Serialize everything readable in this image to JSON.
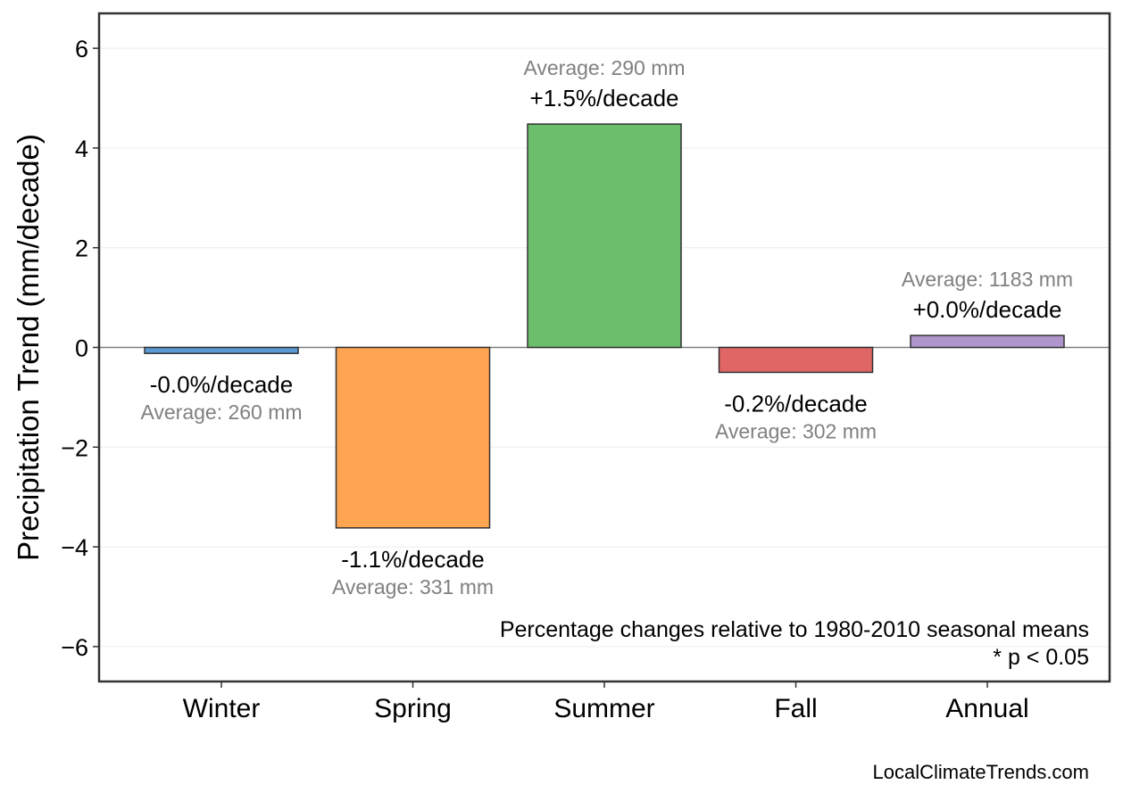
{
  "chart_data": {
    "type": "bar",
    "title": "",
    "xlabel": "",
    "ylabel": "Precipitation Trend (mm/decade)",
    "ylim": [
      -6.7,
      6.7
    ],
    "yticks": [
      6,
      4,
      2,
      0,
      -2,
      -4,
      -6
    ],
    "ytick_labels": [
      "6",
      "4",
      "2",
      "0",
      "−2",
      "−4",
      "−6"
    ],
    "grid": true,
    "categories": [
      "Winter",
      "Spring",
      "Summer",
      "Fall",
      "Annual"
    ],
    "values": [
      -0.12,
      -3.62,
      4.48,
      -0.5,
      0.24
    ],
    "colors": [
      "#5b9bd5",
      "#ffa552",
      "#6bbe6b",
      "#e06666",
      "#b094cc"
    ],
    "percent_labels": [
      "-0.0%/decade",
      "-1.1%/decade",
      "+1.5%/decade",
      "-0.2%/decade",
      "+0.0%/decade"
    ],
    "average_labels": [
      "Average: 260 mm",
      "Average: 331 mm",
      "Average: 290 mm",
      "Average: 302 mm",
      "Average: 1183 mm"
    ],
    "annotations": [
      "Percentage changes relative to 1980-2010 seasonal means",
      "* p < 0.05"
    ]
  },
  "source": "LocalClimateTrends.com"
}
